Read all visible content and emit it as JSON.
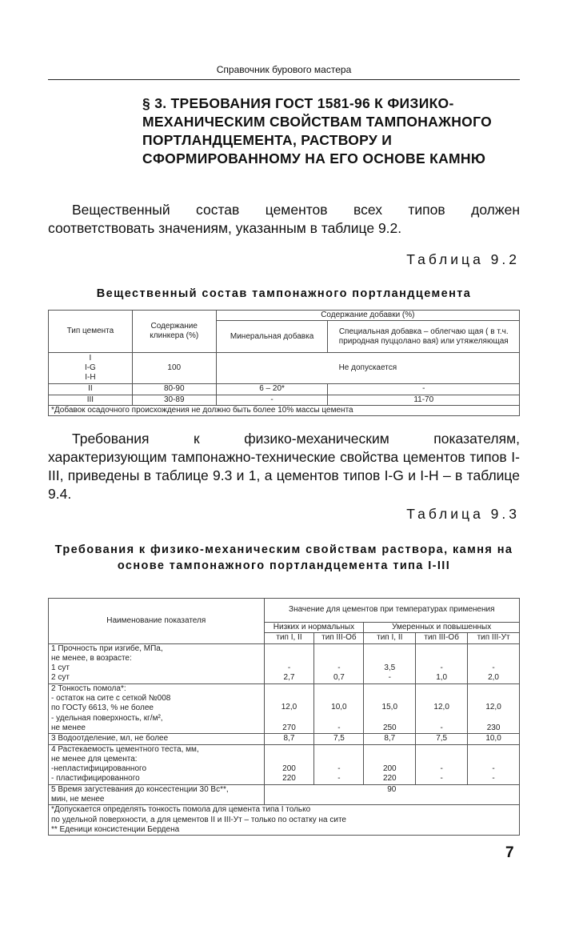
{
  "running_header": "Справочник бурового мастера",
  "section_heading": "§ 3. ТРЕБОВАНИЯ ГОСТ 1581-96 К ФИЗИКО-МЕХАНИЧЕСКИМ СВОЙСТВАМ ТАМПОНАЖНОГО ПОРТЛАНДЦЕМЕНТА, РАСТВОРУ И СФОРМИРОВАННОМУ НА ЕГО ОСНОВЕ КАМНЮ",
  "paragraph1": "Вещественный состав цементов всех типов должен соответствовать значениям, указанным в таблице 9.2.",
  "table92": {
    "label": "Таблица 9.2",
    "title": "Вещественный состав тампонажного портландцемента",
    "h_type": "Тип цемента",
    "h_clinker": "Содержание клинкера (%)",
    "h_additive": "Содержание добавки (%)",
    "h_mineral": "Минеральная добавка",
    "h_special": "Специальная добавка – облегчаю щая ( в т.ч. природная пуццолано вая) или утяжеляющая",
    "rows": [
      {
        "type": "I",
        "type2": "I-G",
        "type3": "I-H",
        "clinker": "100",
        "merged": "Не допускается"
      },
      {
        "type": "II",
        "clinker": "80-90",
        "mineral": "6 – 20*",
        "special": "-"
      },
      {
        "type": "III",
        "clinker": "30-89",
        "mineral": "-",
        "special": "11-70"
      }
    ],
    "footnote": "*Добавок осадочного происхождения не должно быть более 10% массы цемента"
  },
  "paragraph2": "Требования к физико-механическим показателям, характеризующим тампонажно-технические свойства цементов типов I-III, приведены в таблице 9.3 и 1, а цементов типов I-G и I-H – в таблице 9.4.",
  "table93": {
    "label": "Таблица 9.3",
    "title": "Требования к физико-механическим свойствам раствора, камня на основе тампонажного портландцемента типа I-III",
    "h_name": "Наименование показателя",
    "h_value": "Значение для цементов при температурах применения",
    "h_low": "Низких и нормальных",
    "h_mod": "Умеренных и повышенных",
    "types": [
      "тип I, II",
      "тип III-Об",
      "тип I, II",
      "тип III-Об",
      "тип III-Ут"
    ],
    "rows": [
      {
        "name": [
          "1 Прочность при изгибе, МПа,",
          "не менее, в возрасте:",
          "1 сут",
          "2 сут"
        ],
        "values": [
          [
            "-",
            "2,7"
          ],
          [
            "-",
            "0,7"
          ],
          [
            "3,5",
            "-"
          ],
          [
            "-",
            "1,0"
          ],
          [
            "-",
            "2,0"
          ]
        ]
      },
      {
        "name": [
          "2 Тонкость помола*:",
          "- остаток на сите с сеткой №008",
          "по ГОСТу 6613, % не более",
          "- удельная поверхность, кг/м²,",
          "не менее"
        ],
        "values": [
          [
            "12,0",
            "270"
          ],
          [
            "10,0",
            "-"
          ],
          [
            "15,0",
            "250"
          ],
          [
            "12,0",
            "-"
          ],
          [
            "12,0",
            "230"
          ]
        ]
      },
      {
        "name": [
          "3 Водоотделение, мл, не более"
        ],
        "values": [
          [
            "8,7"
          ],
          [
            "7,5"
          ],
          [
            "8,7"
          ],
          [
            "7,5"
          ],
          [
            "10,0"
          ]
        ]
      },
      {
        "name": [
          "4 Растекаемость цементного теста, мм,",
          "не менее для цемента:",
          "-непластифицированного",
          "- пластифицированного"
        ],
        "values": [
          [
            "200",
            "220"
          ],
          [
            "-",
            "-"
          ],
          [
            "200",
            "220"
          ],
          [
            "-",
            "-"
          ],
          [
            "-",
            "-"
          ]
        ]
      },
      {
        "name": [
          "5 Время загустевания до консестенции 30 Вс**,",
          "мин, не менее"
        ],
        "merged": "90"
      }
    ],
    "footnotes": [
      "*Допускается определять тонкость помола для цемента типа I только",
      "по удельной поверхности, а для цементов II и III-Ут – только по остатку на сите",
      "** Еденици консистенции Бердена"
    ]
  },
  "page_number": "7"
}
